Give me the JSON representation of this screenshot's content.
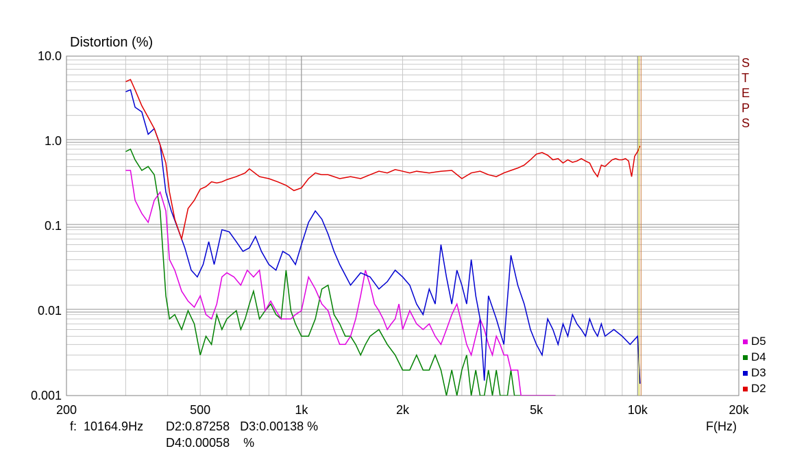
{
  "chart_data": {
    "type": "line",
    "title": "Distortion (%)",
    "xlabel": "F(Hz)",
    "x_scale": "log",
    "y_scale": "log",
    "xlim": [
      200,
      20000
    ],
    "ylim": [
      0.001,
      10
    ],
    "grid": true,
    "x_tick_labels": [
      "200",
      "500",
      "1k",
      "2k",
      "5k",
      "10k",
      "20k"
    ],
    "y_tick_labels": [
      "10.0",
      "1.0",
      "0.1",
      "0.01",
      "0.001"
    ],
    "side_label": "STEPS",
    "cursor_x": 10164.9,
    "legend_position": "bottom-right",
    "series": [
      {
        "name": "D2",
        "color": "#e00000",
        "x": [
          300,
          310,
          320,
          335,
          350,
          365,
          380,
          395,
          405,
          420,
          440,
          460,
          480,
          500,
          520,
          540,
          560,
          580,
          600,
          640,
          680,
          700,
          750,
          800,
          850,
          900,
          950,
          1000,
          1050,
          1100,
          1150,
          1200,
          1300,
          1400,
          1500,
          1600,
          1700,
          1800,
          1900,
          2000,
          2100,
          2200,
          2400,
          2600,
          2800,
          3000,
          3200,
          3400,
          3600,
          3800,
          4000,
          4200,
          4400,
          4600,
          4800,
          5000,
          5200,
          5400,
          5600,
          5800,
          6000,
          6200,
          6400,
          6600,
          6800,
          7000,
          7200,
          7400,
          7600,
          7800,
          8000,
          8200,
          8400,
          8600,
          8800,
          9000,
          9200,
          9400,
          9600,
          9800,
          10000,
          10165
        ],
        "values": [
          5.0,
          5.3,
          4.0,
          2.6,
          1.9,
          1.4,
          0.9,
          0.55,
          0.25,
          0.12,
          0.07,
          0.16,
          0.2,
          0.27,
          0.29,
          0.33,
          0.32,
          0.33,
          0.35,
          0.38,
          0.42,
          0.47,
          0.38,
          0.36,
          0.33,
          0.3,
          0.26,
          0.28,
          0.36,
          0.42,
          0.4,
          0.4,
          0.36,
          0.38,
          0.36,
          0.4,
          0.44,
          0.42,
          0.46,
          0.44,
          0.42,
          0.44,
          0.42,
          0.44,
          0.45,
          0.36,
          0.42,
          0.44,
          0.4,
          0.38,
          0.42,
          0.45,
          0.48,
          0.52,
          0.6,
          0.7,
          0.73,
          0.68,
          0.6,
          0.62,
          0.55,
          0.6,
          0.56,
          0.58,
          0.62,
          0.58,
          0.55,
          0.44,
          0.38,
          0.52,
          0.5,
          0.55,
          0.6,
          0.62,
          0.6,
          0.6,
          0.62,
          0.58,
          0.38,
          0.66,
          0.75,
          0.87258
        ]
      },
      {
        "name": "D3",
        "color": "#0000d0",
        "x": [
          300,
          310,
          320,
          335,
          350,
          365,
          380,
          395,
          410,
          430,
          450,
          470,
          490,
          510,
          530,
          550,
          580,
          610,
          640,
          670,
          700,
          730,
          760,
          800,
          840,
          880,
          920,
          960,
          1000,
          1050,
          1100,
          1150,
          1200,
          1250,
          1300,
          1400,
          1500,
          1600,
          1700,
          1800,
          1900,
          2000,
          2100,
          2200,
          2300,
          2400,
          2500,
          2600,
          2700,
          2800,
          2900,
          3000,
          3100,
          3200,
          3300,
          3400,
          3500,
          3600,
          3800,
          4000,
          4200,
          4400,
          4600,
          4800,
          5000,
          5200,
          5400,
          5600,
          5800,
          6000,
          6200,
          6400,
          6600,
          6800,
          7000,
          7200,
          7400,
          7600,
          7800,
          8000,
          8500,
          9000,
          9500,
          10000,
          10165
        ],
        "values": [
          3.8,
          4.0,
          2.5,
          2.2,
          1.2,
          1.4,
          0.9,
          0.25,
          0.15,
          0.09,
          0.055,
          0.03,
          0.025,
          0.035,
          0.065,
          0.035,
          0.09,
          0.085,
          0.065,
          0.05,
          0.055,
          0.075,
          0.05,
          0.035,
          0.03,
          0.05,
          0.045,
          0.035,
          0.06,
          0.11,
          0.15,
          0.12,
          0.08,
          0.05,
          0.035,
          0.02,
          0.028,
          0.025,
          0.018,
          0.022,
          0.03,
          0.025,
          0.02,
          0.012,
          0.009,
          0.018,
          0.012,
          0.06,
          0.025,
          0.012,
          0.03,
          0.02,
          0.012,
          0.04,
          0.015,
          0.008,
          0.0015,
          0.015,
          0.008,
          0.004,
          0.045,
          0.02,
          0.012,
          0.006,
          0.004,
          0.003,
          0.008,
          0.006,
          0.004,
          0.007,
          0.005,
          0.009,
          0.007,
          0.006,
          0.005,
          0.008,
          0.006,
          0.005,
          0.007,
          0.005,
          0.006,
          0.005,
          0.004,
          0.005,
          0.00138
        ]
      },
      {
        "name": "D4",
        "color": "#008000",
        "x": [
          300,
          310,
          320,
          335,
          350,
          365,
          380,
          395,
          405,
          420,
          440,
          460,
          480,
          500,
          520,
          540,
          560,
          580,
          600,
          620,
          640,
          660,
          680,
          700,
          720,
          750,
          780,
          810,
          840,
          870,
          900,
          930,
          960,
          1000,
          1050,
          1100,
          1150,
          1200,
          1250,
          1300,
          1350,
          1400,
          1450,
          1500,
          1550,
          1600,
          1700,
          1800,
          1900,
          2000,
          2100,
          2200,
          2300,
          2400,
          2500,
          2600,
          2700,
          2800,
          2900,
          3000,
          3100,
          3200,
          3300,
          3400,
          3500,
          3600,
          3700,
          3800,
          3900,
          4000,
          4100,
          4200,
          4300,
          4400,
          4500,
          4700,
          4900,
          5100,
          5300,
          5500,
          5600,
          5700
        ],
        "values": [
          0.75,
          0.8,
          0.6,
          0.45,
          0.5,
          0.4,
          0.15,
          0.015,
          0.008,
          0.009,
          0.006,
          0.01,
          0.007,
          0.003,
          0.005,
          0.004,
          0.009,
          0.006,
          0.008,
          0.009,
          0.01,
          0.006,
          0.008,
          0.012,
          0.017,
          0.008,
          0.01,
          0.012,
          0.009,
          0.008,
          0.03,
          0.01,
          0.007,
          0.005,
          0.005,
          0.008,
          0.018,
          0.02,
          0.009,
          0.007,
          0.005,
          0.005,
          0.004,
          0.003,
          0.004,
          0.005,
          0.006,
          0.004,
          0.003,
          0.002,
          0.002,
          0.003,
          0.002,
          0.002,
          0.003,
          0.002,
          0.001,
          0.002,
          0.001,
          0.002,
          0.003,
          0.001,
          0.002,
          0.001,
          0.001,
          0.002,
          0.001,
          0.002,
          0.001,
          0.001,
          0.001,
          0.002,
          0.001,
          0.001,
          0.001,
          0.001,
          0.001,
          0.001,
          0.001,
          0.001,
          0.001,
          0.00058
        ]
      },
      {
        "name": "D5",
        "color": "#e000e0",
        "x": [
          300,
          310,
          320,
          335,
          350,
          365,
          380,
          395,
          405,
          420,
          440,
          460,
          480,
          500,
          520,
          540,
          560,
          580,
          600,
          630,
          660,
          690,
          720,
          750,
          780,
          810,
          840,
          870,
          900,
          930,
          960,
          1000,
          1050,
          1100,
          1150,
          1200,
          1250,
          1300,
          1350,
          1400,
          1450,
          1500,
          1550,
          1600,
          1650,
          1700,
          1750,
          1800,
          1850,
          1900,
          1950,
          2000,
          2100,
          2200,
          2300,
          2400,
          2500,
          2600,
          2700,
          2800,
          2900,
          3000,
          3100,
          3200,
          3300,
          3400,
          3500,
          3600,
          3700,
          3800,
          3900,
          4000,
          4100,
          4200,
          4300,
          4400,
          4500,
          4700,
          4900,
          5100,
          5300,
          5500,
          5700
        ],
        "values": [
          0.45,
          0.45,
          0.2,
          0.14,
          0.11,
          0.2,
          0.25,
          0.15,
          0.04,
          0.03,
          0.017,
          0.013,
          0.011,
          0.015,
          0.009,
          0.008,
          0.012,
          0.025,
          0.028,
          0.025,
          0.02,
          0.03,
          0.025,
          0.03,
          0.01,
          0.013,
          0.01,
          0.008,
          0.008,
          0.008,
          0.009,
          0.01,
          0.025,
          0.018,
          0.012,
          0.01,
          0.006,
          0.004,
          0.004,
          0.005,
          0.008,
          0.015,
          0.03,
          0.02,
          0.012,
          0.01,
          0.008,
          0.006,
          0.007,
          0.008,
          0.012,
          0.006,
          0.01,
          0.007,
          0.006,
          0.007,
          0.005,
          0.004,
          0.006,
          0.009,
          0.012,
          0.007,
          0.004,
          0.003,
          0.005,
          0.008,
          0.006,
          0.004,
          0.003,
          0.005,
          0.004,
          0.003,
          0.003,
          0.002,
          0.002,
          0.002,
          0.001,
          0.001,
          0.001,
          0.001,
          0.001,
          0.001,
          0.001
        ]
      }
    ]
  },
  "cursor_readout": {
    "freq": "f:  10164.9Hz",
    "line1": "D2:0.87258   D3:0.00138 %",
    "line2": "D4:0.00058    %"
  }
}
